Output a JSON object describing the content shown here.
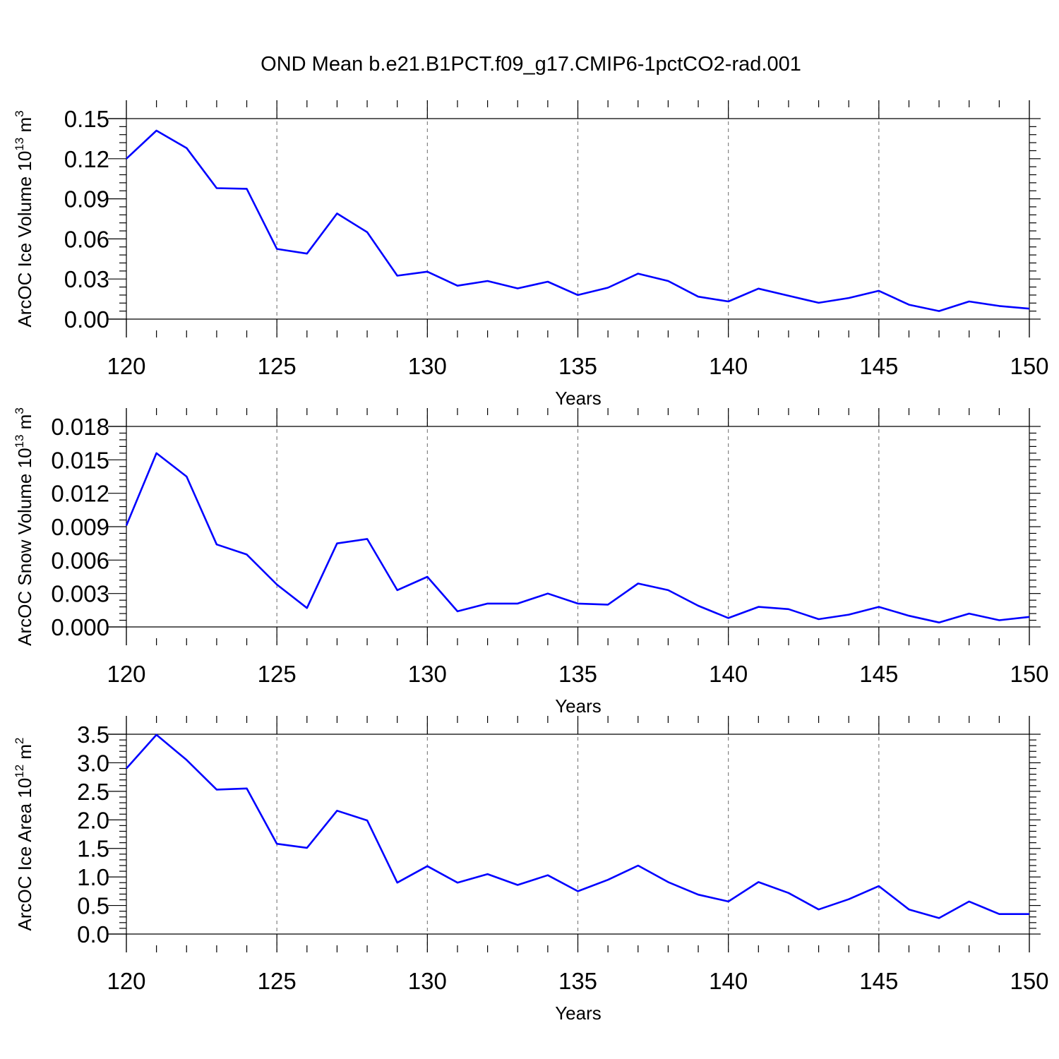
{
  "title": "OND Mean b.e21.B1PCT.f09_g17.CMIP6-1pctCO2-rad.001",
  "colors": {
    "series": "#0000ff",
    "grid": "#777777",
    "axis": "#000000"
  },
  "chart_data": [
    {
      "type": "line",
      "xlabel": "Years",
      "ylabel": {
        "text": "ArcOC Ice Volume 10",
        "exp": "13",
        "unit": " m",
        "unit_exp": "3"
      },
      "xlim": [
        120,
        150
      ],
      "ylim": [
        0,
        0.15
      ],
      "xticks": [
        "120",
        "125",
        "130",
        "135",
        "140",
        "145",
        "150"
      ],
      "yticks": [
        "0.00",
        "0.03",
        "0.06",
        "0.09",
        "0.12",
        "0.15"
      ],
      "grid": "vertical dashed at major x ticks",
      "x": [
        120,
        121,
        122,
        123,
        124,
        125,
        126,
        127,
        128,
        129,
        130,
        131,
        132,
        133,
        134,
        135,
        136,
        137,
        138,
        139,
        140,
        141,
        142,
        143,
        144,
        145,
        146,
        147,
        148,
        149,
        150
      ],
      "series": [
        {
          "values": [
            0.12,
            0.141,
            0.128,
            0.098,
            0.0975,
            0.0525,
            0.049,
            0.079,
            0.065,
            0.0325,
            0.0355,
            0.025,
            0.0285,
            0.023,
            0.028,
            0.018,
            0.0235,
            0.034,
            0.0285,
            0.0168,
            0.0132,
            0.0228,
            0.0175,
            0.0122,
            0.0158,
            0.0212,
            0.0108,
            0.006,
            0.0132,
            0.0098,
            0.0078
          ]
        }
      ]
    },
    {
      "type": "line",
      "xlabel": "Years",
      "ylabel": {
        "text": "ArcOC Snow Volume 10",
        "exp": "13",
        "unit": " m",
        "unit_exp": "3"
      },
      "xlim": [
        120,
        150
      ],
      "ylim": [
        0,
        0.018
      ],
      "xticks": [
        "120",
        "125",
        "130",
        "135",
        "140",
        "145",
        "150"
      ],
      "yticks": [
        "0.000",
        "0.003",
        "0.006",
        "0.009",
        "0.012",
        "0.015",
        "0.018"
      ],
      "grid": "vertical dashed at major x ticks",
      "x": [
        120,
        121,
        122,
        123,
        124,
        125,
        126,
        127,
        128,
        129,
        130,
        131,
        132,
        133,
        134,
        135,
        136,
        137,
        138,
        139,
        140,
        141,
        142,
        143,
        144,
        145,
        146,
        147,
        148,
        149,
        150
      ],
      "series": [
        {
          "values": [
            0.0091,
            0.0156,
            0.0135,
            0.0074,
            0.0065,
            0.0038,
            0.0017,
            0.0075,
            0.0079,
            0.0033,
            0.0045,
            0.0014,
            0.0021,
            0.0021,
            0.003,
            0.0021,
            0.002,
            0.0039,
            0.0033,
            0.0019,
            0.0008,
            0.0018,
            0.0016,
            0.0007,
            0.0011,
            0.0018,
            0.001,
            0.0004,
            0.0012,
            0.0006,
            0.0009
          ]
        }
      ]
    },
    {
      "type": "line",
      "xlabel": "Years",
      "ylabel": {
        "text": "ArcOC Ice Area 10",
        "exp": "12",
        "unit": " m",
        "unit_exp": "2"
      },
      "xlim": [
        120,
        150
      ],
      "ylim": [
        0,
        3.5
      ],
      "xticks": [
        "120",
        "125",
        "130",
        "135",
        "140",
        "145",
        "150"
      ],
      "yticks": [
        "0.0",
        "0.5",
        "1.0",
        "1.5",
        "2.0",
        "2.5",
        "3.0",
        "3.5"
      ],
      "grid": "vertical dashed at major x ticks",
      "x": [
        120,
        121,
        122,
        123,
        124,
        125,
        126,
        127,
        128,
        129,
        130,
        131,
        132,
        133,
        134,
        135,
        136,
        137,
        138,
        139,
        140,
        141,
        142,
        143,
        144,
        145,
        146,
        147,
        148,
        149,
        150
      ],
      "series": [
        {
          "values": [
            2.9,
            3.49,
            3.05,
            2.53,
            2.55,
            1.58,
            1.51,
            2.16,
            1.99,
            0.9,
            1.19,
            0.9,
            1.05,
            0.86,
            1.03,
            0.75,
            0.95,
            1.2,
            0.91,
            0.69,
            0.57,
            0.91,
            0.72,
            0.43,
            0.61,
            0.84,
            0.43,
            0.28,
            0.57,
            0.35,
            0.35
          ]
        }
      ]
    }
  ]
}
